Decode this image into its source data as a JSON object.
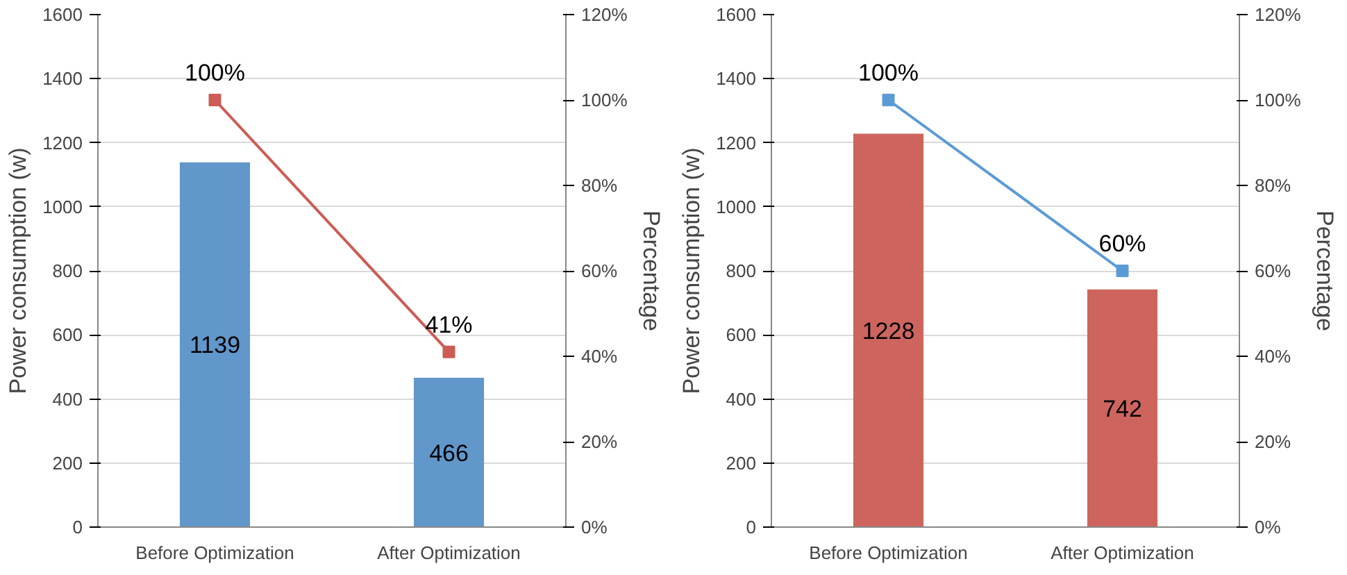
{
  "chart_data": [
    {
      "type": "bar",
      "categories": [
        "Before Optimization",
        "After Optimization"
      ],
      "ylabel": "Power consumption (w)",
      "y2label": "Percentage",
      "ylim": [
        0,
        1600
      ],
      "yticks": [
        0,
        200,
        400,
        600,
        800,
        1000,
        1200,
        1400,
        1600
      ],
      "y2lim": [
        0,
        120
      ],
      "y2ticks": [
        {
          "value": 0,
          "label": "0%"
        },
        {
          "value": 20,
          "label": "20%"
        },
        {
          "value": 40,
          "label": "40%"
        },
        {
          "value": 60,
          "label": "60%"
        },
        {
          "value": 80,
          "label": "80%"
        },
        {
          "value": 100,
          "label": "100%"
        },
        {
          "value": 120,
          "label": "120%"
        }
      ],
      "grid": "y",
      "marker": "square",
      "line_style": "solid",
      "series": [
        {
          "color": "#6197cb",
          "values": [
            1139,
            466
          ],
          "value_labels": [
            "1139",
            "466"
          ]
        },
        {
          "type": "line",
          "axis": "y2",
          "color": "#cc5c55",
          "values": [
            100,
            41
          ],
          "value_labels": [
            "100%",
            "41%"
          ]
        }
      ]
    },
    {
      "type": "bar",
      "categories": [
        "Before Optimization",
        "After Optimization"
      ],
      "ylabel": "Power consumption (w)",
      "y2label": "Percentage",
      "ylim": [
        0,
        1600
      ],
      "yticks": [
        0,
        200,
        400,
        600,
        800,
        1000,
        1200,
        1400,
        1600
      ],
      "y2lim": [
        0,
        120
      ],
      "y2ticks": [
        {
          "value": 0,
          "label": "0%"
        },
        {
          "value": 20,
          "label": "20%"
        },
        {
          "value": 40,
          "label": "40%"
        },
        {
          "value": 60,
          "label": "60%"
        },
        {
          "value": 80,
          "label": "80%"
        },
        {
          "value": 100,
          "label": "100%"
        },
        {
          "value": 120,
          "label": "120%"
        }
      ],
      "grid": "y",
      "marker": "square",
      "line_style": "solid",
      "series": [
        {
          "color": "#cd655e",
          "values": [
            1228,
            742
          ],
          "value_labels": [
            "1228",
            "742"
          ]
        },
        {
          "type": "line",
          "axis": "y2",
          "color": "#5b9bd5",
          "values": [
            100,
            60
          ],
          "value_labels": [
            "100%",
            "60%"
          ]
        }
      ]
    }
  ]
}
